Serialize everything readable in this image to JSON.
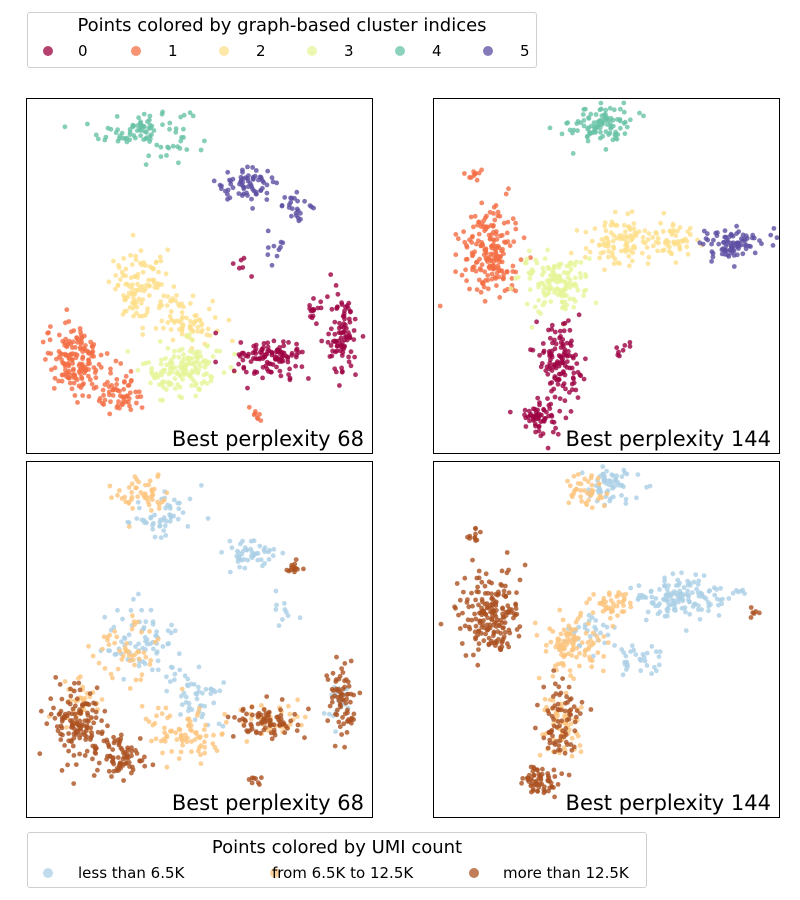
{
  "cluster_legend": {
    "title": "Points colored by graph-based cluster indices",
    "items": [
      {
        "label": "0",
        "color": "#9e0142"
      },
      {
        "label": "1",
        "color": "#f46d43"
      },
      {
        "label": "2",
        "color": "#fee08b"
      },
      {
        "label": "3",
        "color": "#e6f598"
      },
      {
        "label": "4",
        "color": "#66c2a5"
      },
      {
        "label": "5",
        "color": "#5e4fa2"
      }
    ]
  },
  "umi_legend": {
    "title": "Points colored by UMI count",
    "items": [
      {
        "label": "less than 6.5K",
        "color": "#abd0e6"
      },
      {
        "label": "from 6.5K to 12.5K",
        "color": "#fdc47d"
      },
      {
        "label": "more than 12.5K",
        "color": "#ab5120"
      }
    ]
  },
  "chart_data": [
    {
      "type": "scatter",
      "title": "Best perplexity 68",
      "color_by": "cluster",
      "axes_visible": false,
      "xlim": [
        0,
        100
      ],
      "ylim": [
        0,
        100
      ],
      "groups": [
        {
          "name": "4",
          "clouds": [
            [
              34,
              91,
              12,
              6,
              90
            ]
          ]
        },
        {
          "name": "5",
          "clouds": [
            [
              63,
              76,
              8,
              4,
              70
            ],
            [
              78,
              70,
              4,
              3,
              25
            ],
            [
              72,
              57,
              4,
              6,
              10
            ]
          ]
        },
        {
          "name": "2",
          "clouds": [
            [
              33,
              47,
              8,
              9,
              110
            ],
            [
              46,
              38,
              8,
              6,
              70
            ]
          ]
        },
        {
          "name": "3",
          "clouds": [
            [
              45,
              24,
              10,
              7,
              150
            ]
          ]
        },
        {
          "name": "1",
          "clouds": [
            [
              14,
              27,
              8,
              9,
              160
            ],
            [
              27,
              17,
              6,
              5,
              60
            ],
            [
              66,
              11,
              2,
              2,
              8
            ]
          ]
        },
        {
          "name": "0",
          "clouds": [
            [
              70,
              27,
              9,
              5,
              110
            ],
            [
              91,
              33,
              4,
              11,
              90
            ],
            [
              83,
              40,
              2,
              3,
              15
            ],
            [
              61,
              53,
              2,
              3,
              6
            ]
          ]
        }
      ]
    },
    {
      "type": "scatter",
      "title": "Best perplexity 144",
      "color_by": "cluster",
      "axes_visible": false,
      "xlim": [
        0,
        100
      ],
      "ylim": [
        0,
        100
      ],
      "groups": [
        {
          "name": "4",
          "clouds": [
            [
              48,
              93,
              8,
              5,
              100
            ]
          ]
        },
        {
          "name": "1",
          "clouds": [
            [
              16,
              57,
              8,
              12,
              190
            ],
            [
              11,
              79,
              2,
              2,
              10
            ]
          ]
        },
        {
          "name": "2",
          "clouds": [
            [
              53,
              60,
              8,
              6,
              90
            ],
            [
              68,
              61,
              7,
              4,
              60
            ]
          ]
        },
        {
          "name": "3",
          "clouds": [
            [
              34,
              48,
              9,
              7,
              140
            ]
          ]
        },
        {
          "name": "5",
          "clouds": [
            [
              86,
              59,
              8,
              4,
              90
            ]
          ]
        },
        {
          "name": "0",
          "clouds": [
            [
              36,
              27,
              6,
              10,
              120
            ],
            [
              31,
              10,
              5,
              4,
              60
            ],
            [
              54,
              30,
              3,
              3,
              8
            ]
          ]
        }
      ]
    },
    {
      "type": "scatter",
      "title": "Best perplexity 68",
      "color_by": "umi_count",
      "axes_visible": false,
      "xlim": [
        0,
        100
      ],
      "ylim": [
        0,
        100
      ],
      "groups": [
        {
          "name": "less than 6.5K",
          "clouds": [
            [
              40,
              85,
              10,
              6,
              50
            ],
            [
              64,
              74,
              8,
              4,
              50
            ],
            [
              33,
              50,
              9,
              9,
              70
            ],
            [
              48,
              34,
              8,
              8,
              50
            ],
            [
              90,
              32,
              3,
              6,
              20
            ],
            [
              74,
              58,
              4,
              6,
              10
            ]
          ]
        },
        {
          "name": "from 6.5K to 12.5K",
          "clouds": [
            [
              34,
              91,
              8,
              5,
              50
            ],
            [
              28,
              47,
              8,
              9,
              50
            ],
            [
              45,
              24,
              10,
              7,
              80
            ],
            [
              15,
              32,
              6,
              7,
              40
            ],
            [
              70,
              27,
              8,
              5,
              40
            ]
          ]
        },
        {
          "name": "more than 12.5K",
          "clouds": [
            [
              14,
              27,
              8,
              9,
              140
            ],
            [
              27,
              17,
              6,
              5,
              70
            ],
            [
              70,
              27,
              9,
              5,
              80
            ],
            [
              91,
              33,
              4,
              11,
              70
            ],
            [
              77,
              71,
              2,
              2,
              14
            ],
            [
              66,
              11,
              2,
              2,
              8
            ]
          ]
        }
      ]
    },
    {
      "type": "scatter",
      "title": "Best perplexity 144",
      "color_by": "umi_count",
      "axes_visible": false,
      "xlim": [
        0,
        100
      ],
      "ylim": [
        0,
        100
      ],
      "groups": [
        {
          "name": "less than 6.5K",
          "clouds": [
            [
              50,
              93,
              8,
              5,
              60
            ],
            [
              72,
              62,
              12,
              5,
              140
            ],
            [
              44,
              52,
              6,
              5,
              30
            ],
            [
              60,
              45,
              8,
              6,
              30
            ]
          ]
        },
        {
          "name": "from 6.5K to 12.5K",
          "clouds": [
            [
              44,
              92,
              5,
              4,
              40
            ],
            [
              40,
              48,
              8,
              8,
              100
            ],
            [
              52,
              60,
              6,
              4,
              40
            ],
            [
              36,
              26,
              5,
              8,
              60
            ]
          ]
        },
        {
          "name": "more than 12.5K",
          "clouds": [
            [
              16,
              57,
              8,
              12,
              190
            ],
            [
              11,
              79,
              2,
              2,
              10
            ],
            [
              36,
              27,
              6,
              10,
              80
            ],
            [
              31,
              10,
              5,
              4,
              60
            ],
            [
              92,
              58,
              1.5,
              1.5,
              6
            ]
          ]
        }
      ]
    }
  ]
}
